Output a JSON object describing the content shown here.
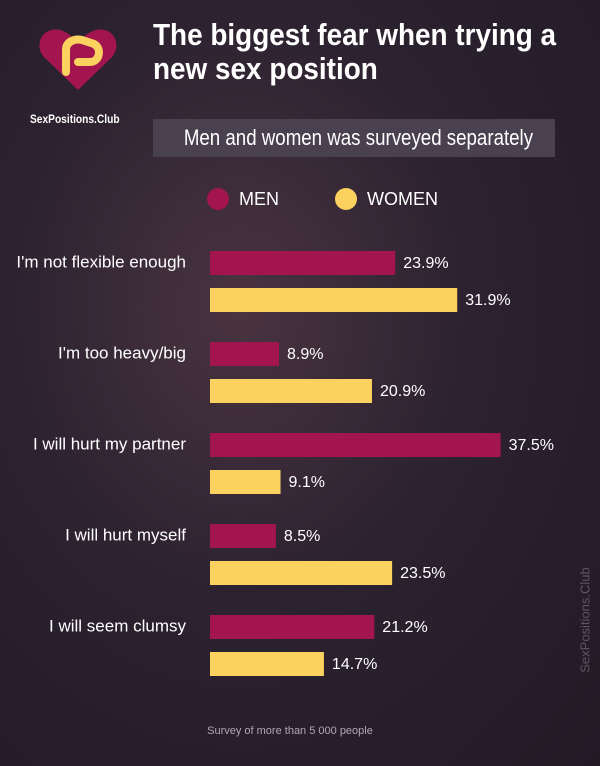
{
  "chart_data": {
    "type": "bar",
    "orientation": "horizontal",
    "title": "The biggest fear when trying a new sex position",
    "brand": "SexPositions.Club",
    "subtitle": "Men and women was surveyed separately",
    "categories": [
      "I'm not flexible enough",
      "I'm too heavy/big",
      "I will hurt my partner",
      "I will hurt myself",
      "I will seem clumsy"
    ],
    "series": [
      {
        "name": "MEN",
        "color": "#a3154f",
        "values": [
          23.9,
          8.9,
          37.5,
          8.5,
          21.2
        ],
        "value_labels": [
          "23.9%",
          "8.9%",
          "37.5%",
          "8.5%",
          "21.2%"
        ]
      },
      {
        "name": "WOMEN",
        "color": "#fbd25f",
        "values": [
          31.9,
          20.9,
          9.1,
          23.5,
          14.7
        ],
        "value_labels": [
          "31.9%",
          "20.9%",
          "9.1%",
          "23.5%",
          "14.7%"
        ]
      }
    ],
    "note": "Survey of more than 5 000 people",
    "watermark": "SexPositions.Club"
  }
}
